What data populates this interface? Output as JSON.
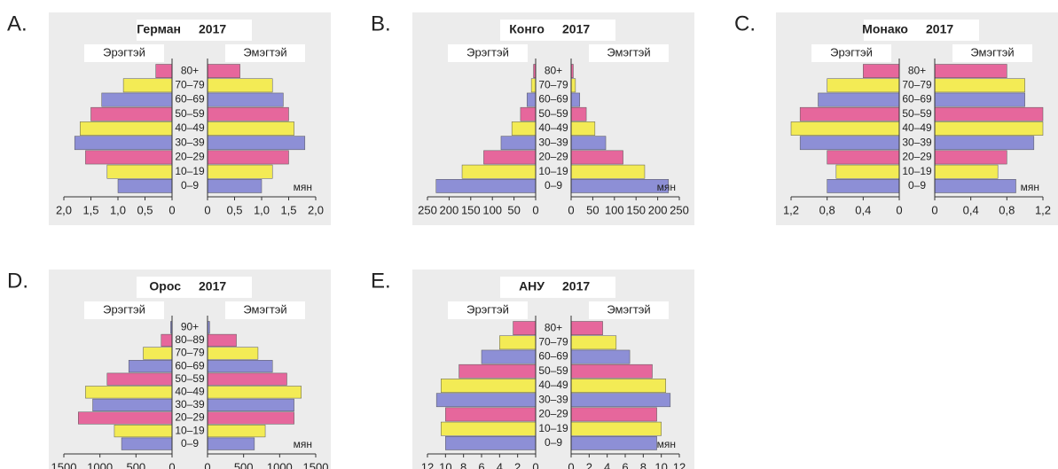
{
  "chart_data": [
    {
      "type": "pyramid",
      "label": "A.",
      "title": "Герман",
      "year": "2017",
      "unit_label": "мян",
      "categories": [
        "80+",
        "70–79",
        "60–69",
        "50–59",
        "40–49",
        "30–39",
        "20–29",
        "10–19",
        "0–9"
      ],
      "bar_colors": [
        "#e6679c",
        "#f3eb55",
        "#8d8fd6",
        "#e6679c",
        "#f3eb55",
        "#8d8fd6",
        "#e6679c",
        "#f3eb55",
        "#8d8fd6"
      ],
      "series": [
        {
          "name": "Эрэгтэй",
          "values": [
            0.3,
            0.9,
            1.3,
            1.5,
            1.7,
            1.8,
            1.6,
            1.2,
            1.0
          ]
        },
        {
          "name": "Эмэгтэй",
          "values": [
            0.6,
            1.2,
            1.4,
            1.5,
            1.6,
            1.8,
            1.5,
            1.2,
            1.0
          ]
        }
      ],
      "xlim": [
        0,
        2.0
      ],
      "xticks": [
        0,
        {
          "value": 0.5,
          "label": "0,5"
        },
        {
          "value": 1.0,
          "label": "1,0"
        },
        {
          "value": 1.5,
          "label": "1,5"
        },
        {
          "value": 2.0,
          "label": "2,0"
        }
      ]
    },
    {
      "type": "pyramid",
      "label": "B.",
      "title": "Конго",
      "year": "2017",
      "unit_label": "мян",
      "categories": [
        "80+",
        "70–79",
        "60–69",
        "50–59",
        "40–49",
        "30–39",
        "20–29",
        "10–19",
        "0–9"
      ],
      "bar_colors": [
        "#e6679c",
        "#f3eb55",
        "#8d8fd6",
        "#e6679c",
        "#f3eb55",
        "#8d8fd6",
        "#e6679c",
        "#f3eb55",
        "#8d8fd6"
      ],
      "series": [
        {
          "name": "Эрэгтэй",
          "values": [
            5,
            10,
            20,
            35,
            55,
            80,
            120,
            170,
            230
          ]
        },
        {
          "name": "Эмэгтэй",
          "values": [
            5,
            10,
            20,
            35,
            55,
            80,
            120,
            170,
            225
          ]
        }
      ],
      "xlim": [
        0,
        250
      ],
      "xticks": [
        0,
        50,
        100,
        150,
        200,
        250
      ]
    },
    {
      "type": "pyramid",
      "label": "C.",
      "title": "Монако",
      "year": "2017",
      "unit_label": "мян",
      "categories": [
        "80+",
        "70–79",
        "60–69",
        "50–59",
        "40–49",
        "30–39",
        "20–29",
        "10–19",
        "0–9"
      ],
      "bar_colors": [
        "#e6679c",
        "#f3eb55",
        "#8d8fd6",
        "#e6679c",
        "#f3eb55",
        "#8d8fd6",
        "#e6679c",
        "#f3eb55",
        "#8d8fd6"
      ],
      "series": [
        {
          "name": "Эрэгтэй",
          "values": [
            0.4,
            0.8,
            0.9,
            1.1,
            1.2,
            1.1,
            0.8,
            0.7,
            0.8
          ]
        },
        {
          "name": "Эмэгтэй",
          "values": [
            0.8,
            1.0,
            1.0,
            1.2,
            1.2,
            1.1,
            0.8,
            0.7,
            0.9
          ]
        }
      ],
      "xlim": [
        0,
        1.2
      ],
      "xticks": [
        0,
        {
          "value": 0.4,
          "label": "0,4"
        },
        {
          "value": 0.8,
          "label": "0,8"
        },
        {
          "value": 1.2,
          "label": "1,2"
        }
      ]
    },
    {
      "type": "pyramid",
      "label": "D.",
      "title": "Орос",
      "year": "2017",
      "unit_label": "мян",
      "categories": [
        "90+",
        "80–89",
        "70–79",
        "60–69",
        "50–59",
        "40–49",
        "30–39",
        "20–29",
        "10–19",
        "0–9"
      ],
      "bar_colors": [
        "#8d8fd6",
        "#e6679c",
        "#f3eb55",
        "#8d8fd6",
        "#e6679c",
        "#f3eb55",
        "#8d8fd6",
        "#e6679c",
        "#f3eb55",
        "#8d8fd6"
      ],
      "series": [
        {
          "name": "Эрэгтэй",
          "values": [
            20,
            150,
            400,
            600,
            900,
            1200,
            1100,
            1300,
            800,
            700
          ]
        },
        {
          "name": "Эмэгтэй",
          "values": [
            30,
            400,
            700,
            900,
            1100,
            1300,
            1200,
            1200,
            800,
            650
          ]
        }
      ],
      "xlim": [
        0,
        1500
      ],
      "xticks": [
        0,
        500,
        1000,
        1500
      ]
    },
    {
      "type": "pyramid",
      "label": "E.",
      "title": "АНУ",
      "year": "2017",
      "unit_label": "мян",
      "categories": [
        "80+",
        "70–79",
        "60–69",
        "50–59",
        "40–49",
        "30–39",
        "20–29",
        "10–19",
        "0–9"
      ],
      "bar_colors": [
        "#e6679c",
        "#f3eb55",
        "#8d8fd6",
        "#e6679c",
        "#f3eb55",
        "#8d8fd6",
        "#e6679c",
        "#f3eb55",
        "#8d8fd6"
      ],
      "series": [
        {
          "name": "Эрэгтэй",
          "values": [
            2.5,
            4,
            6,
            8.5,
            10.5,
            11,
            10,
            10.5,
            10
          ]
        },
        {
          "name": "Эмэгтэй",
          "values": [
            3.5,
            5,
            6.5,
            9,
            10.5,
            11,
            9.5,
            10,
            9.5
          ]
        }
      ],
      "xlim": [
        0,
        12
      ],
      "xticks": [
        0,
        2,
        4,
        6,
        8,
        10,
        12
      ]
    }
  ]
}
